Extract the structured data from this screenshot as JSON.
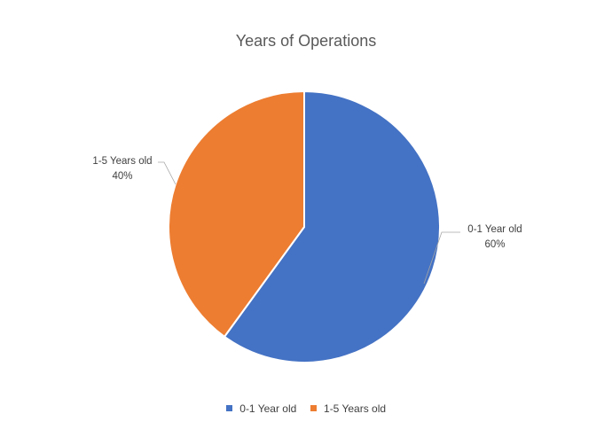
{
  "chart_data": {
    "type": "pie",
    "title": "Years of Operations",
    "categories": [
      "0-1 Year old",
      "1-5 Years old"
    ],
    "values": [
      60,
      40
    ],
    "data_labels": [
      "60%",
      "40%"
    ],
    "colors": [
      "#4472C4",
      "#ED7D31"
    ],
    "legend": "bottom",
    "start_angle": "12 o'clock, clockwise"
  }
}
